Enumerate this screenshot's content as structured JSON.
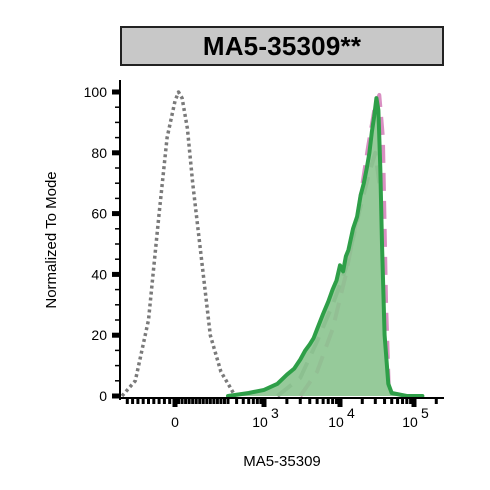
{
  "title": "MA5-35309**",
  "chart_data": {
    "type": "area",
    "xlabel": "MA5-35309",
    "ylabel": "Normalized To Mode",
    "xscale": "biexponential",
    "ylim": [
      0,
      100
    ],
    "grid": false,
    "legend": "none",
    "y_ticks": [
      {
        "value": 0,
        "label": "0"
      },
      {
        "value": 20,
        "label": "20"
      },
      {
        "value": 40,
        "label": "40"
      },
      {
        "value": 60,
        "label": "60"
      },
      {
        "value": 80,
        "label": "80"
      },
      {
        "value": 100,
        "label": "100"
      }
    ],
    "x_ticks": [
      {
        "value": 0,
        "label": "0",
        "exp": ""
      },
      {
        "value": 1000,
        "label": "10",
        "exp": "3"
      },
      {
        "value": 10000,
        "label": "10",
        "exp": "4"
      },
      {
        "value": 100000,
        "label": "10",
        "exp": "5"
      }
    ],
    "series": [
      {
        "style": "dotted",
        "fill": false,
        "color": "#7a7a7a",
        "x": [
          -200,
          -150,
          -100,
          -60,
          -30,
          0,
          20,
          40,
          70,
          100,
          150,
          200,
          260,
          320,
          380
        ],
        "y": [
          0,
          5,
          25,
          60,
          85,
          97,
          100,
          98,
          88,
          70,
          45,
          20,
          8,
          3,
          0
        ]
      },
      {
        "style": "dashed",
        "fill": false,
        "color": "#d98fc2",
        "x": [
          3000,
          5000,
          8000,
          12000,
          18000,
          24000,
          30000,
          34000,
          38000,
          42000,
          46000
        ],
        "y": [
          0,
          8,
          22,
          40,
          62,
          82,
          96,
          99,
          85,
          30,
          0
        ]
      },
      {
        "style": "dashed",
        "fill": false,
        "color": "#9a9a9a",
        "x": [
          1500,
          3000,
          5000,
          8000,
          12000,
          18000,
          24000,
          30000,
          34000
        ],
        "y": [
          0,
          6,
          18,
          30,
          42,
          60,
          72,
          80,
          70
        ]
      },
      {
        "style": "solid",
        "fill": true,
        "color": "#2e9f48",
        "fill_color": "#8bc48f",
        "x": [
          300,
          600,
          1000,
          1500,
          2000,
          2500,
          3000,
          3500,
          4000,
          4500,
          5000,
          6000,
          7000,
          8000,
          9000,
          10000,
          11000,
          12000,
          13000,
          15000,
          17000,
          19000,
          21000,
          23000,
          25000,
          27000,
          29000,
          31000,
          33000,
          35000,
          37000,
          40000,
          45000,
          50000,
          80000,
          130000
        ],
        "y": [
          0,
          1,
          2,
          4,
          7,
          9,
          12,
          15,
          17,
          19,
          22,
          27,
          31,
          35,
          38,
          43,
          41,
          46,
          48,
          55,
          59,
          66,
          70,
          75,
          80,
          87,
          92,
          98,
          94,
          75,
          50,
          20,
          4,
          1,
          0,
          0
        ]
      }
    ]
  }
}
